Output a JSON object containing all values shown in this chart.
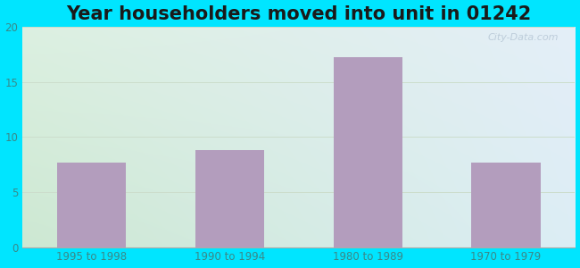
{
  "title": "Year householders moved into unit in 01242",
  "categories": [
    "1995 to 1998",
    "1990 to 1994",
    "1980 to 1989",
    "1970 to 1979"
  ],
  "values": [
    7.7,
    8.8,
    17.2,
    7.7
  ],
  "bar_color": "#b39dbd",
  "ylim": [
    0,
    20
  ],
  "yticks": [
    0,
    5,
    10,
    15,
    20
  ],
  "background_outer": "#00e5ff",
  "background_tl": "#d8ede0",
  "background_tr": "#e8f2f8",
  "background_bl": "#d0e8d8",
  "background_br": "#e0eef4",
  "title_fontsize": 15,
  "tick_color": "#3a8888",
  "watermark": "City-Data.com",
  "grid_color": "#ccddcc"
}
